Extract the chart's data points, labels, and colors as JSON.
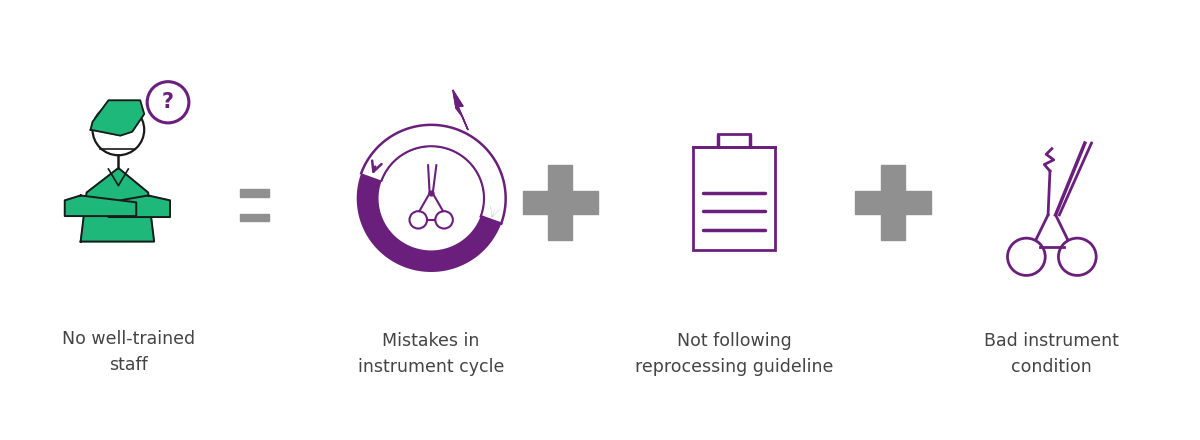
{
  "background_color": "#ffffff",
  "purple_color": "#6B1F7C",
  "green_color": "#1DB87A",
  "gray_color": "#909090",
  "black_color": "#1a1a1a",
  "text_color": "#444444",
  "labels": [
    "No well-trained\nstaff",
    "Mistakes in\ninstrument cycle",
    "Not following\nreprocessing guideline",
    "Bad instrument\ncondition"
  ],
  "label_fontsize": 12.5,
  "figsize": [
    12.0,
    4.4
  ],
  "dpi": 100
}
